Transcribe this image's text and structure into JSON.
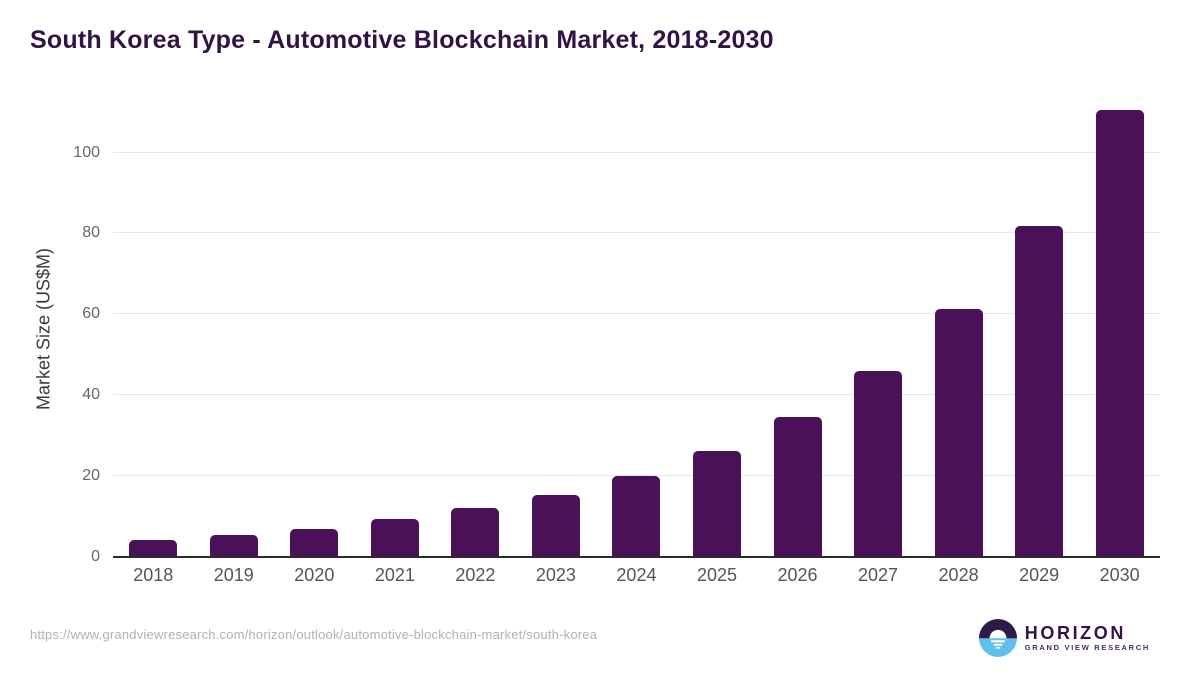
{
  "header": {
    "title": "South Korea Type - Automotive Blockchain Market, 2018-2030"
  },
  "chart_data": {
    "type": "bar",
    "title": "South Korea Type - Automotive Blockchain Market, 2018-2030",
    "categories": [
      "2018",
      "2019",
      "2020",
      "2021",
      "2022",
      "2023",
      "2024",
      "2025",
      "2026",
      "2027",
      "2028",
      "2029",
      "2030"
    ],
    "values": [
      4.3,
      5.5,
      7.0,
      9.3,
      12.0,
      15.4,
      20.1,
      26.3,
      34.6,
      45.9,
      61.3,
      81.8,
      110.6
    ],
    "xlabel": "",
    "ylabel": "Market Size (US$M)",
    "ylim": [
      0,
      113
    ],
    "yticks": [
      0,
      20,
      40,
      60,
      80,
      100
    ],
    "grid": true,
    "legend": false,
    "bar_color": "#4A1158"
  },
  "footer": {
    "source_url": "https://www.grandviewresearch.com/horizon/outlook/automotive-blockchain-market/south-korea",
    "logo": {
      "brand": "HORIZON",
      "sub_brand": "GRAND VIEW RESEARCH",
      "icon": "sunset-circle-icon"
    }
  },
  "colors": {
    "title_text": "#331345",
    "bar": "#4A1158",
    "gridline": "#e8e8e8",
    "axis_line": "#2b2b2b",
    "tick_text": "#666666",
    "x_label_text": "#555555",
    "url_text": "#b1b1b1",
    "logo_purple": "#2e1a47",
    "logo_blue": "#5fc0e9"
  }
}
